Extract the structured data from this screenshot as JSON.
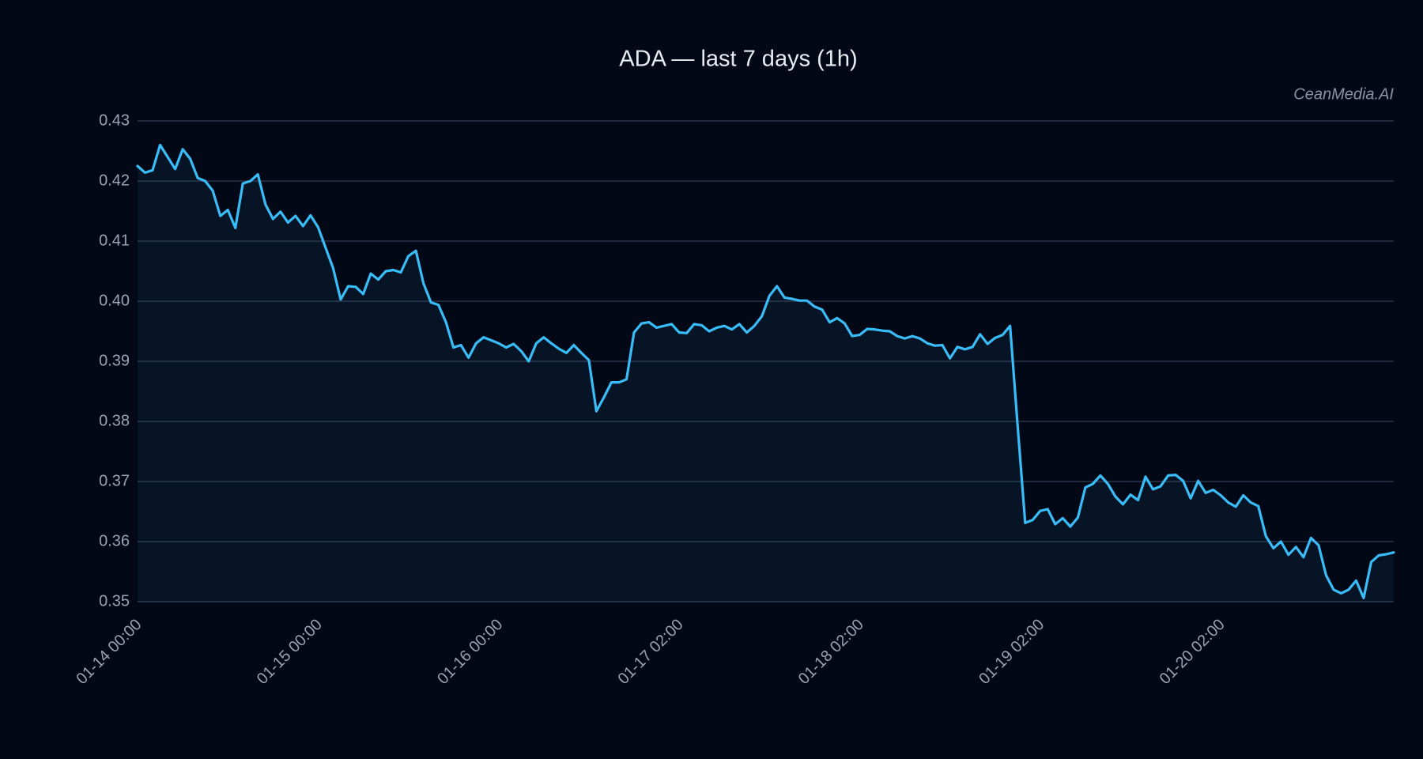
{
  "chart_data": {
    "type": "line",
    "title": "ADA — last 7 days (1h)",
    "watermark": "CeanMedia.AI",
    "categories": [
      "01-14 00:00",
      null,
      null,
      null,
      null,
      null,
      null,
      null,
      null,
      null,
      null,
      null,
      null,
      null,
      null,
      null,
      null,
      null,
      null,
      null,
      null,
      null,
      null,
      null,
      "01-15 00:00",
      null,
      null,
      null,
      null,
      null,
      null,
      null,
      null,
      null,
      null,
      null,
      null,
      null,
      null,
      null,
      null,
      null,
      null,
      null,
      null,
      null,
      null,
      null,
      "01-16 00:00",
      null,
      null,
      null,
      null,
      null,
      null,
      null,
      null,
      null,
      null,
      null,
      null,
      null,
      null,
      null,
      null,
      null,
      null,
      null,
      null,
      null,
      null,
      null,
      "01-17 02:00",
      null,
      null,
      null,
      null,
      null,
      null,
      null,
      null,
      null,
      null,
      null,
      null,
      null,
      null,
      null,
      null,
      null,
      null,
      null,
      null,
      null,
      null,
      null,
      "01-18 02:00",
      null,
      null,
      null,
      null,
      null,
      null,
      null,
      null,
      null,
      null,
      null,
      null,
      null,
      null,
      null,
      null,
      null,
      null,
      null,
      null,
      null,
      null,
      null,
      "01-19 02:00",
      null,
      null,
      null,
      null,
      null,
      null,
      null,
      null,
      null,
      null,
      null,
      null,
      null,
      null,
      null,
      null,
      null,
      null,
      null,
      null,
      null,
      null,
      null,
      "01-20 02:00",
      null,
      null,
      null,
      null,
      null,
      null,
      null,
      null,
      null,
      null,
      null,
      null,
      null,
      null,
      null,
      null,
      null,
      null,
      null,
      null,
      null,
      null,
      null
    ],
    "series": [
      {
        "color": "#38bdf8",
        "values": [
          0.4225,
          0.4214,
          0.4218,
          0.426,
          0.424,
          0.422,
          0.4253,
          0.4237,
          0.4205,
          0.42,
          0.4184,
          0.4142,
          0.4152,
          0.4122,
          0.4196,
          0.42,
          0.4211,
          0.4161,
          0.4137,
          0.4149,
          0.4131,
          0.4142,
          0.4125,
          0.4143,
          0.4123,
          0.4089,
          0.4055,
          0.4003,
          0.4025,
          0.4024,
          0.4012,
          0.4046,
          0.4036,
          0.405,
          0.4052,
          0.4048,
          0.4075,
          0.4084,
          0.403,
          0.3998,
          0.3994,
          0.3965,
          0.3923,
          0.3927,
          0.3906,
          0.393,
          0.394,
          0.3935,
          0.393,
          0.3923,
          0.3929,
          0.3917,
          0.39,
          0.393,
          0.394,
          0.393,
          0.3921,
          0.3914,
          0.3927,
          0.3914,
          0.3902,
          0.3817,
          0.384,
          0.3865,
          0.3865,
          0.387,
          0.3948,
          0.3963,
          0.3965,
          0.3956,
          0.3959,
          0.3962,
          0.3948,
          0.3947,
          0.3962,
          0.396,
          0.395,
          0.3956,
          0.3959,
          0.3953,
          0.3962,
          0.3948,
          0.3959,
          0.3975,
          0.4009,
          0.4025,
          0.4006,
          0.4004,
          0.4001,
          0.4001,
          0.3991,
          0.3986,
          0.3965,
          0.3972,
          0.3963,
          0.3942,
          0.3944,
          0.3954,
          0.3953,
          0.3951,
          0.395,
          0.3942,
          0.3938,
          0.3942,
          0.3938,
          0.393,
          0.3926,
          0.3927,
          0.3905,
          0.3924,
          0.392,
          0.3924,
          0.3945,
          0.3929,
          0.3939,
          0.3944,
          0.3959,
          0.3792,
          0.3631,
          0.3636,
          0.3651,
          0.3654,
          0.3629,
          0.3639,
          0.3625,
          0.364,
          0.369,
          0.3696,
          0.371,
          0.3696,
          0.3675,
          0.3662,
          0.3678,
          0.3669,
          0.3708,
          0.3687,
          0.3692,
          0.371,
          0.3711,
          0.3701,
          0.3672,
          0.3701,
          0.3681,
          0.3686,
          0.3677,
          0.3665,
          0.3658,
          0.3677,
          0.3665,
          0.3659,
          0.3609,
          0.3589,
          0.36,
          0.3578,
          0.3591,
          0.3574,
          0.3606,
          0.3594,
          0.3544,
          0.352,
          0.3514,
          0.352,
          0.3535,
          0.3506,
          0.3566,
          0.3577,
          0.3579,
          0.3582
        ]
      }
    ],
    "ylim": [
      0.35,
      0.43
    ],
    "yticks": [
      0.35,
      {
        "value": 0.36,
        "label": "0.36"
      },
      0.37,
      0.38,
      0.39,
      {
        "value": 0.4,
        "label": "0.40"
      },
      0.41,
      0.42,
      0.43
    ],
    "grid": true,
    "fill_area": true
  }
}
